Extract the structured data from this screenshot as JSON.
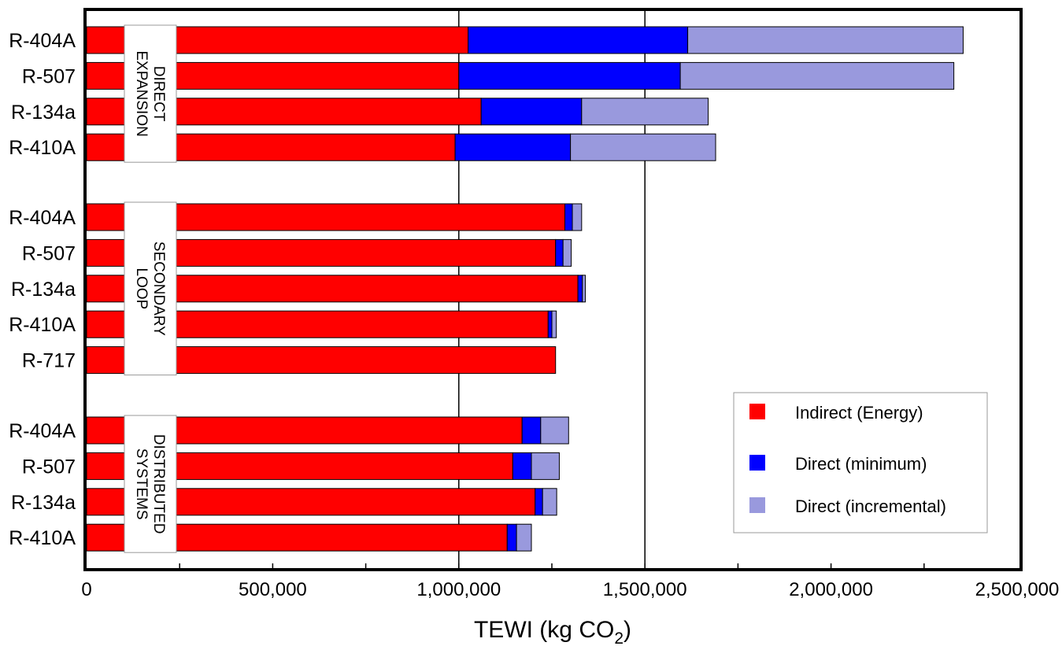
{
  "chart_data": {
    "type": "bar",
    "orientation": "horizontal",
    "stacked": true,
    "xlabel": "TEWI (kg CO",
    "xlabel_subscript": "2",
    "xlabel_suffix": ")",
    "xlim": [
      0,
      2500000
    ],
    "xticks": [
      0,
      500000,
      1000000,
      1500000,
      2000000,
      2500000
    ],
    "xtick_labels": [
      "0",
      "500,000",
      "1,000,000",
      "1,500,000",
      "2,000,000",
      "2,500,000"
    ],
    "gridlines_at": [
      1000000,
      1500000
    ],
    "legend_position": "bottom-right",
    "series": [
      {
        "name": "Indirect (Energy)",
        "color": "#ff0000"
      },
      {
        "name": "Direct (minimum)",
        "color": "#0000ff"
      },
      {
        "name": "Direct (incremental)",
        "color": "#9999dd"
      }
    ],
    "groups": [
      {
        "label_lines": [
          "DIRECT",
          "EXPANSION"
        ],
        "bars": [
          {
            "category": "R-404A",
            "values": [
              1025000,
              590000,
              740000
            ]
          },
          {
            "category": "R-507",
            "values": [
              1000000,
              595000,
              735000
            ]
          },
          {
            "category": "R-134a",
            "values": [
              1060000,
              270000,
              340000
            ]
          },
          {
            "category": "R-410A",
            "values": [
              990000,
              310000,
              390000
            ]
          }
        ]
      },
      {
        "label_lines": [
          "SECONDARY",
          "LOOP"
        ],
        "bars": [
          {
            "category": "R-404A",
            "values": [
              1285000,
              20000,
              25000
            ]
          },
          {
            "category": "R-507",
            "values": [
              1260000,
              20000,
              22000
            ]
          },
          {
            "category": "R-134a",
            "values": [
              1320000,
              12000,
              8000
            ]
          },
          {
            "category": "R-410A",
            "values": [
              1240000,
              10000,
              12000
            ]
          },
          {
            "category": "R-717",
            "values": [
              1260000,
              0,
              0
            ]
          }
        ]
      },
      {
        "label_lines": [
          "DISTRIBUTED",
          "SYSTEMS"
        ],
        "bars": [
          {
            "category": "R-404A",
            "values": [
              1170000,
              50000,
              75000
            ]
          },
          {
            "category": "R-507",
            "values": [
              1145000,
              50000,
              75000
            ]
          },
          {
            "category": "R-134a",
            "values": [
              1205000,
              20000,
              38000
            ]
          },
          {
            "category": "R-410A",
            "values": [
              1130000,
              25000,
              40000
            ]
          }
        ]
      }
    ]
  }
}
